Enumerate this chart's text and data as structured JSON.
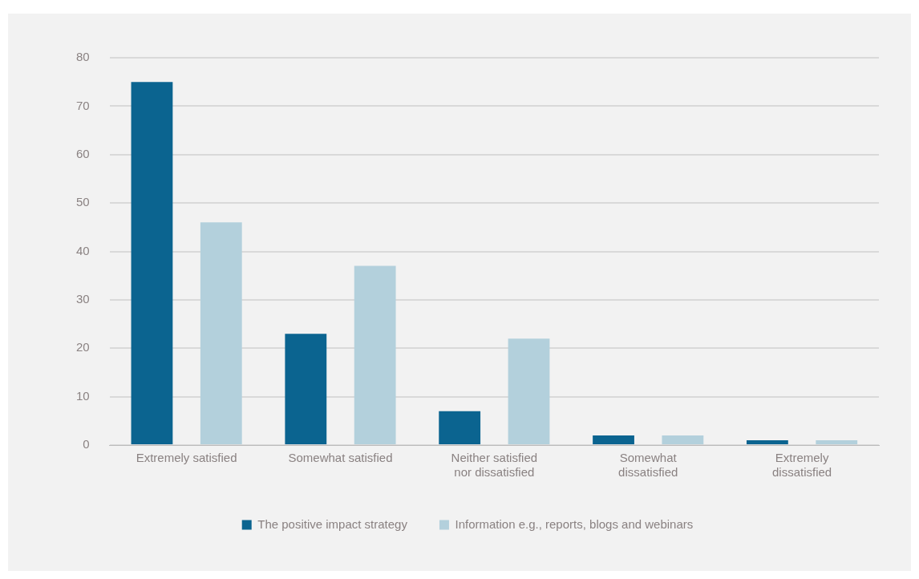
{
  "chart_data": {
    "type": "bar",
    "categories": [
      "Extremely satisfied",
      "Somewhat satisfied",
      "Neither satisfied nor dissatisfied",
      "Somewhat dissatisfied",
      "Extremely dissatisfied"
    ],
    "series": [
      {
        "name": "The positive impact strategy",
        "color": "#0b6490",
        "values": [
          75,
          23,
          7,
          2,
          1
        ]
      },
      {
        "name": "Information e.g., reports, blogs and webinars",
        "color": "#b3d0dc",
        "values": [
          46,
          37,
          22,
          2,
          1
        ]
      }
    ],
    "ylim": [
      0,
      80
    ],
    "yticks": [
      0,
      10,
      20,
      30,
      40,
      50,
      60,
      70,
      80
    ],
    "grid": "y",
    "legend": "bottom"
  }
}
